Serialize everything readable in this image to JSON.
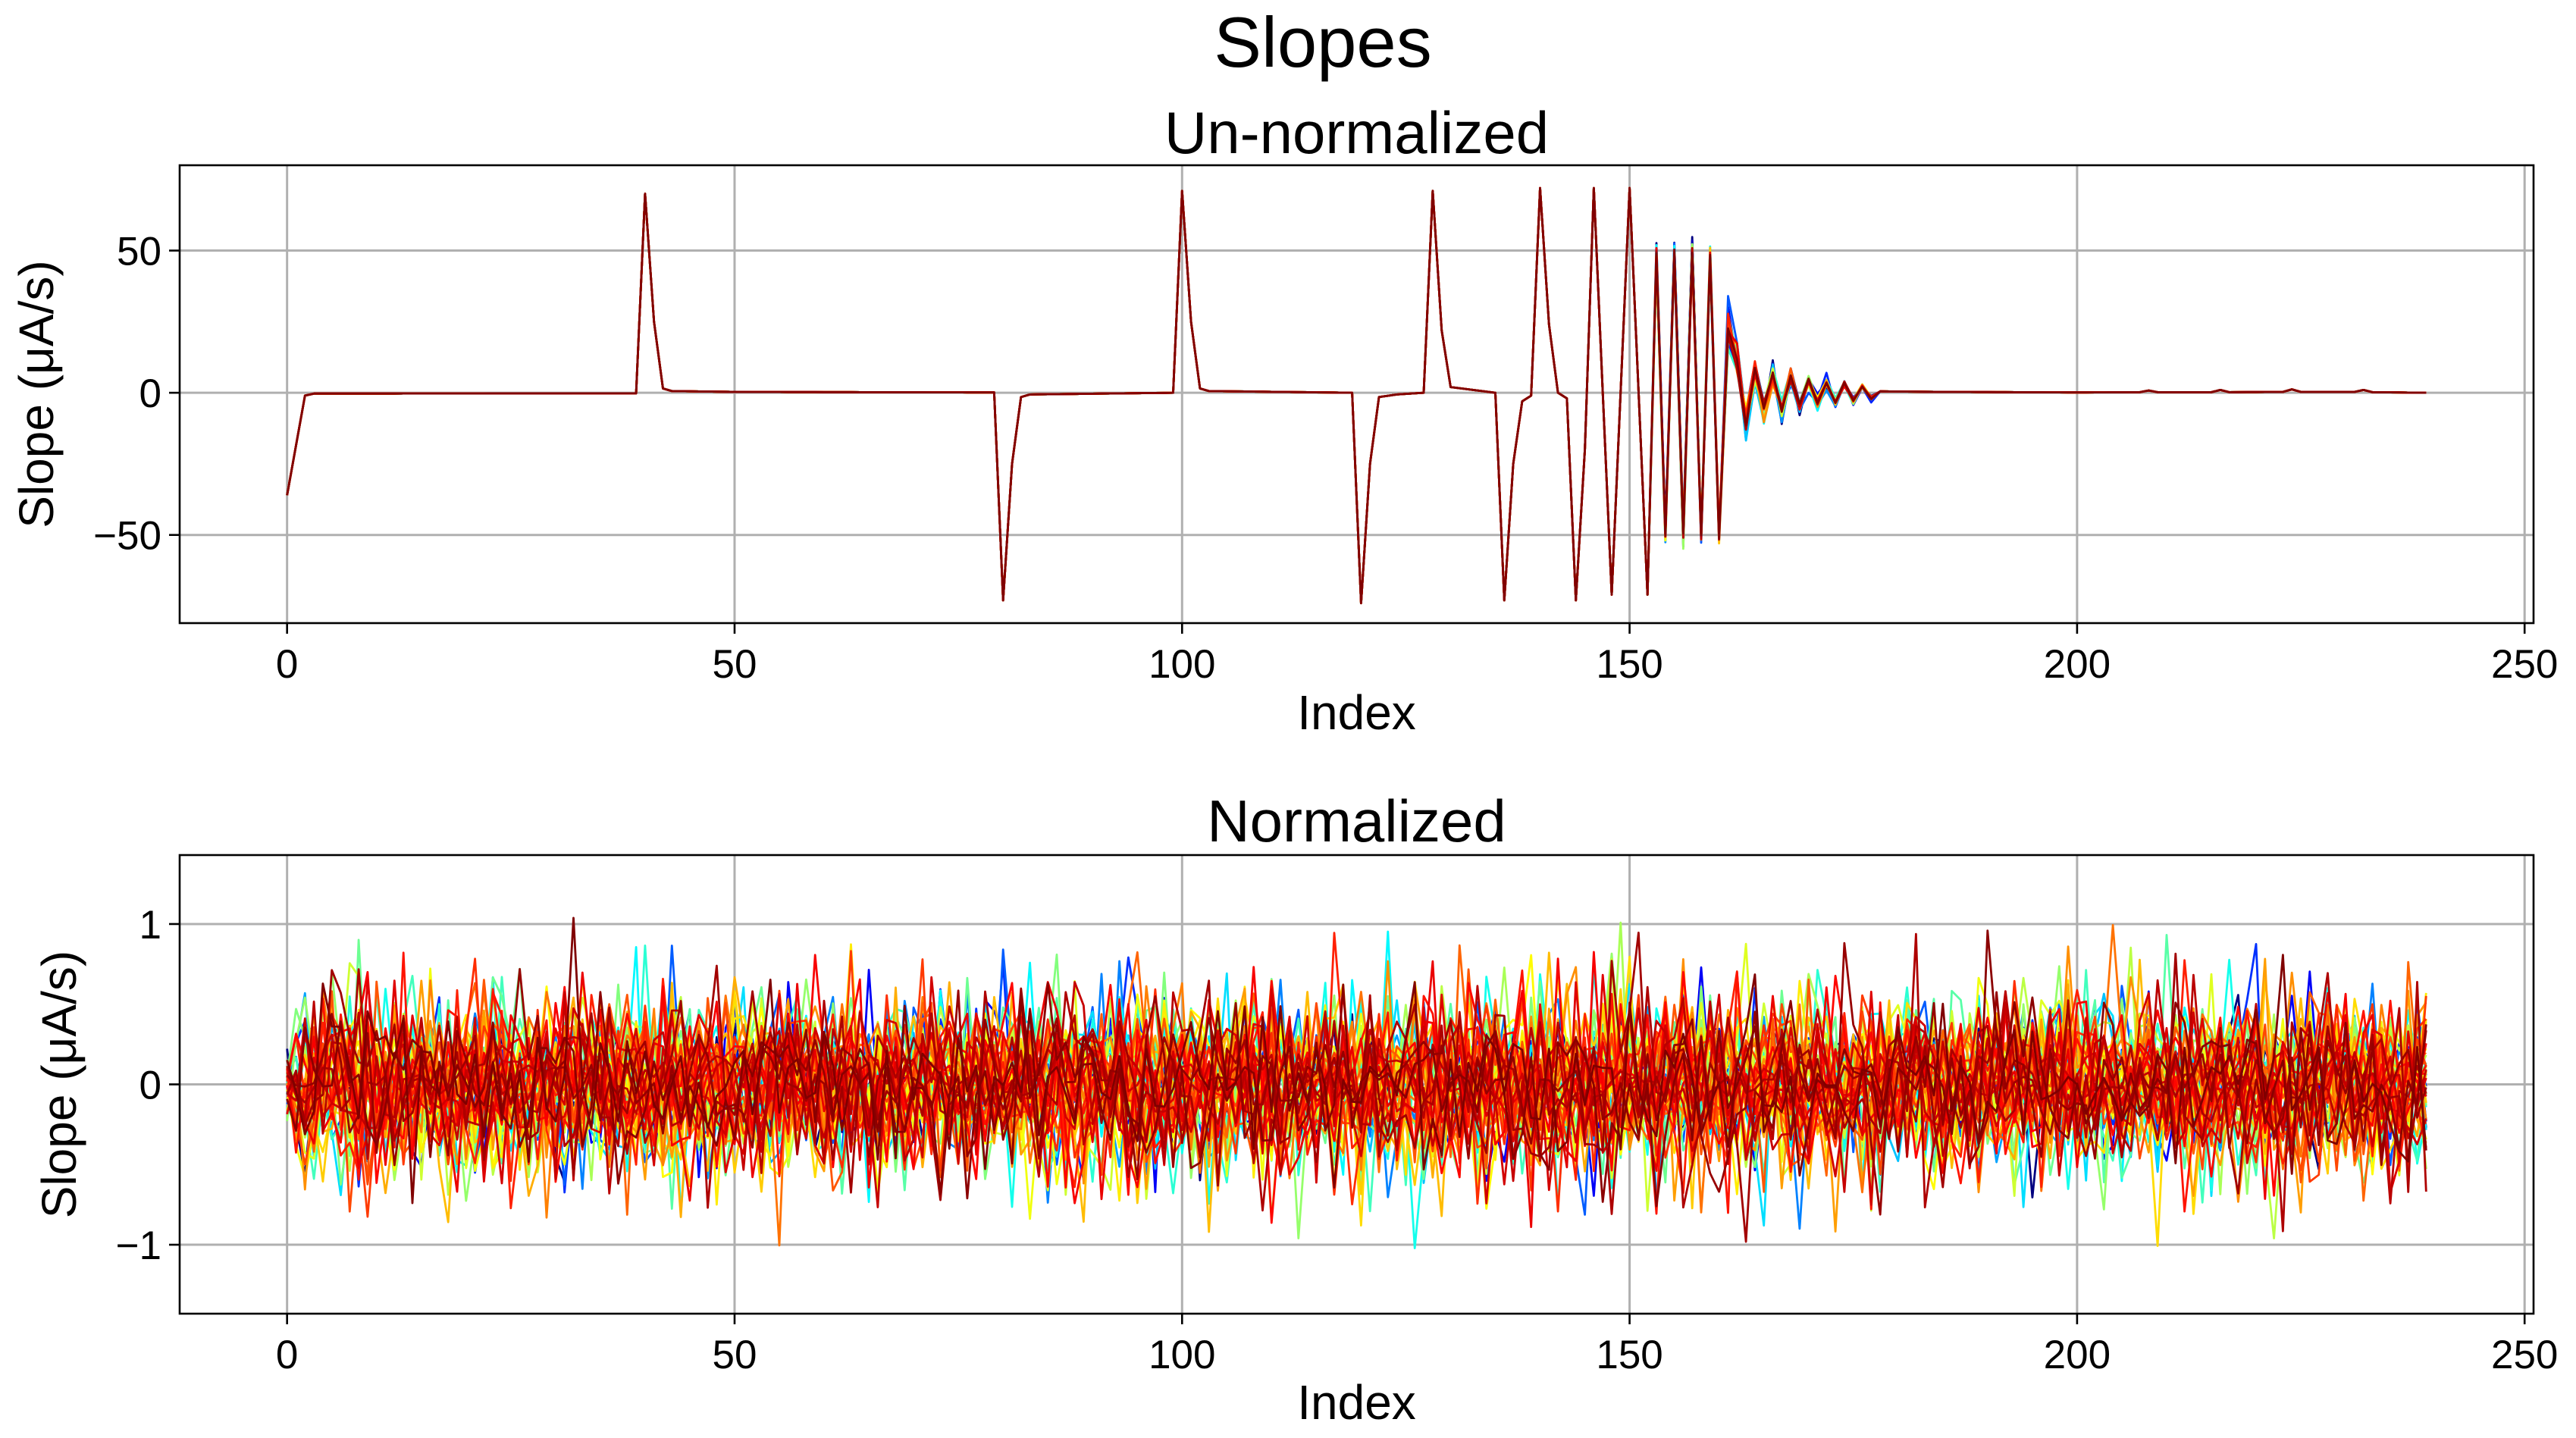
{
  "figure": {
    "suptitle": "Slopes"
  },
  "chart_data": [
    {
      "type": "line",
      "title": "Un-normalized",
      "xlabel": "Index",
      "ylabel": "Slope (μA/s)",
      "xlim": [
        -12,
        251
      ],
      "ylim": [
        -81,
        80
      ],
      "xticks": [
        0,
        50,
        100,
        150,
        200,
        250
      ],
      "yticks": [
        -50,
        0,
        50
      ],
      "ytick_labels": [
        "−50",
        "0",
        "50"
      ],
      "grid": true,
      "legend": "none",
      "colormap": "jet",
      "series_count": 20,
      "baseline_series": [
        [
          0,
          -36
        ],
        [
          2,
          -1
        ],
        [
          3,
          -0.3
        ],
        [
          39,
          -0.2
        ],
        [
          40,
          70
        ],
        [
          41,
          25
        ],
        [
          42,
          1.5
        ],
        [
          43,
          0.6
        ],
        [
          50,
          0.3
        ],
        [
          79,
          0.1
        ],
        [
          80,
          -73
        ],
        [
          81,
          -25
        ],
        [
          82,
          -1.5
        ],
        [
          83,
          -0.6
        ],
        [
          99,
          0
        ],
        [
          100,
          71
        ],
        [
          101,
          25
        ],
        [
          102,
          1.5
        ],
        [
          103,
          0.6
        ],
        [
          119,
          0
        ],
        [
          120,
          -74
        ],
        [
          121,
          -25
        ],
        [
          122,
          -1.5
        ],
        [
          124,
          -0.6
        ],
        [
          127,
          0
        ],
        [
          128,
          71
        ],
        [
          129,
          22
        ],
        [
          130,
          2
        ],
        [
          135,
          0
        ],
        [
          136,
          -73
        ],
        [
          137,
          -25
        ],
        [
          138,
          -3
        ],
        [
          139,
          -1
        ],
        [
          140,
          72
        ],
        [
          141,
          24
        ],
        [
          142,
          0
        ],
        [
          143,
          -2
        ],
        [
          144,
          -73
        ],
        [
          145,
          -20
        ],
        [
          146,
          72
        ],
        [
          147,
          0
        ],
        [
          148,
          -71
        ],
        [
          150,
          72
        ],
        [
          152,
          -71
        ],
        [
          153,
          49
        ],
        [
          154,
          -50
        ],
        [
          155,
          49
        ],
        [
          156,
          -50
        ],
        [
          157,
          49
        ],
        [
          158,
          -50
        ],
        [
          159,
          49
        ],
        [
          160,
          -50
        ],
        [
          161,
          23
        ],
        [
          162,
          10
        ],
        [
          163,
          -10
        ],
        [
          164,
          8
        ],
        [
          165,
          -7
        ],
        [
          166,
          6
        ],
        [
          167,
          -6
        ],
        [
          168,
          5
        ],
        [
          169,
          -5
        ],
        [
          170,
          4
        ],
        [
          171,
          -4
        ],
        [
          172,
          3.5
        ],
        [
          173,
          -3.5
        ],
        [
          174,
          3
        ],
        [
          175,
          -3
        ],
        [
          176,
          2.5
        ],
        [
          177,
          -2
        ],
        [
          178,
          0.5
        ],
        [
          185,
          0.3
        ],
        [
          200,
          0.1
        ],
        [
          207,
          0.2
        ],
        [
          208,
          0.8
        ],
        [
          209,
          0.2
        ],
        [
          215,
          0.2
        ],
        [
          216,
          1
        ],
        [
          217,
          0.2
        ],
        [
          223,
          0.3
        ],
        [
          224,
          1.2
        ],
        [
          225,
          0.3
        ],
        [
          231,
          0.3
        ],
        [
          232,
          1
        ],
        [
          233,
          0.2
        ],
        [
          239,
          0
        ]
      ]
    },
    {
      "type": "line",
      "title": "Normalized",
      "xlabel": "Index",
      "ylabel": "Slope (μA/s)",
      "xlim": [
        -12,
        251
      ],
      "ylim": [
        -1.43,
        1.43
      ],
      "xticks": [
        0,
        50,
        100,
        150,
        200,
        250
      ],
      "yticks": [
        -1,
        0,
        1
      ],
      "ytick_labels": [
        "−1",
        "0",
        "1"
      ],
      "grid": true,
      "legend": "none",
      "colormap": "jet",
      "series_count": 50,
      "points_per_series": 240,
      "value_spread": 0.35,
      "value_extremes": [
        -1.28,
        1.31
      ]
    }
  ]
}
